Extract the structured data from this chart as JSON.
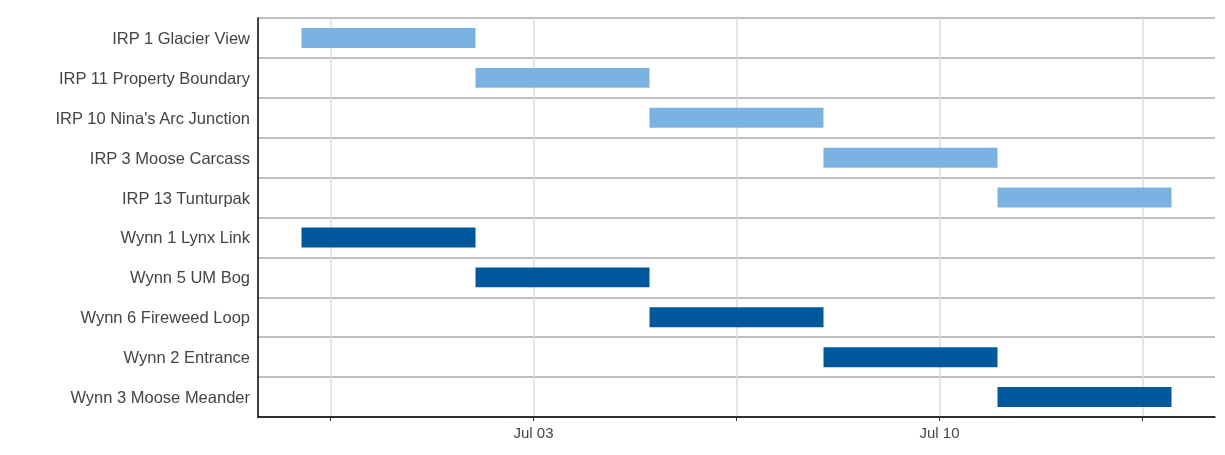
{
  "chart_data": {
    "type": "bar",
    "orientation": "horizontal",
    "categories": [
      "IRP 1 Glacier View",
      "IRP 11 Property Boundary",
      "IRP 10 Nina's Arc Junction",
      "IRP 3 Moose Carcass",
      "IRP 13 Tunturpak",
      "Wynn 1 Lynx Link",
      "Wynn 5 UM Bog",
      "Wynn 6 Fireweed Loop",
      "Wynn 2 Entrance",
      "Wynn 3 Moose Meander"
    ],
    "base": [
      11502,
      11505,
      11508,
      11511,
      11514,
      11502,
      11505,
      11508,
      11511,
      11514
    ],
    "values": [
      3,
      3,
      3,
      3,
      3,
      3,
      3,
      3,
      3,
      3
    ],
    "colors": [
      "#7ab3e1",
      "#7ab3e1",
      "#7ab3e1",
      "#7ab3e1",
      "#7ab3e1",
      "#00589c",
      "#00589c",
      "#00589c",
      "#00589c",
      "#00589c"
    ],
    "xlim": [
      "--06-28T06:00",
      "--07-14T18:00"
    ],
    "xticks": [
      {
        "value": "--06-29T12:00",
        "label": null
      },
      {
        "value": "--07-03",
        "label": "Jul 03"
      },
      {
        "value": "--07-06T12:00",
        "label": null
      },
      {
        "value": "--07-10",
        "label": "Jul 10"
      },
      {
        "value": "--07-13T12:00",
        "label": null
      }
    ],
    "grid": true
  }
}
